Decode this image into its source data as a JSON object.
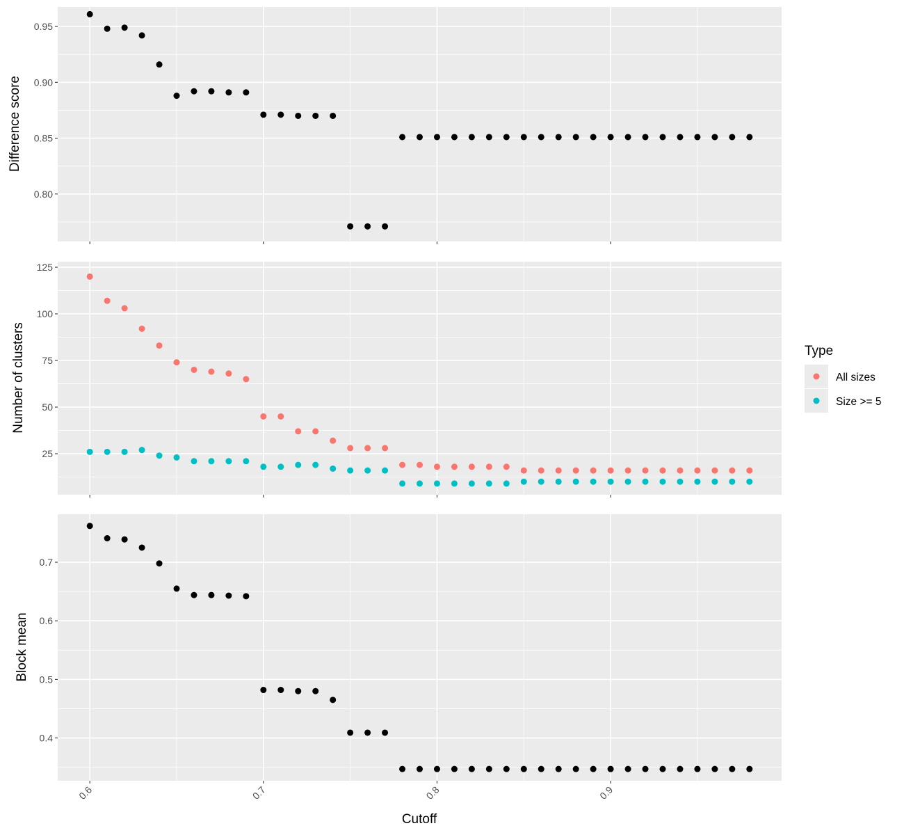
{
  "chart_data": {
    "type": "scatter",
    "x_title": "Cutoff",
    "x_lim": [
      0.5815,
      0.9985
    ],
    "x_ticks": [
      0.6,
      0.7,
      0.8,
      0.9
    ],
    "x_tick_labels": [
      "0.6",
      "0.7",
      "0.8",
      "0.9"
    ],
    "x": [
      0.6,
      0.61,
      0.62,
      0.63,
      0.64,
      0.65,
      0.66,
      0.67,
      0.68,
      0.69,
      0.7,
      0.71,
      0.72,
      0.73,
      0.74,
      0.75,
      0.76,
      0.77,
      0.78,
      0.79,
      0.8,
      0.81,
      0.82,
      0.83,
      0.84,
      0.85,
      0.86,
      0.87,
      0.88,
      0.89,
      0.9,
      0.91,
      0.92,
      0.93,
      0.94,
      0.95,
      0.96,
      0.97,
      0.98
    ],
    "grid": true,
    "background": "#ebebeb",
    "legend_position": "right",
    "legend": {
      "title": "Type",
      "entries": [
        {
          "label": "All sizes",
          "color": "#F8766D"
        },
        {
          "label": "Size >= 5",
          "color": "#00BFC4"
        }
      ]
    },
    "panels": [
      {
        "ylabel": "Difference score",
        "ylim": [
          0.7575,
          0.9675
        ],
        "y_ticks": [
          0.8,
          0.85,
          0.9,
          0.95
        ],
        "y_tick_labels": [
          "0.80",
          "0.85",
          "0.90",
          "0.95"
        ],
        "series": [
          {
            "color": "#000000",
            "values": [
              0.961,
              0.948,
              0.949,
              0.942,
              0.916,
              0.888,
              0.892,
              0.892,
              0.891,
              0.891,
              0.871,
              0.871,
              0.87,
              0.87,
              0.87,
              0.771,
              0.771,
              0.771,
              0.851,
              0.851,
              0.851,
              0.851,
              0.851,
              0.851,
              0.851,
              0.851,
              0.851,
              0.851,
              0.851,
              0.851,
              0.851,
              0.851,
              0.851,
              0.851,
              0.851,
              0.851,
              0.851,
              0.851,
              0.851
            ]
          }
        ]
      },
      {
        "ylabel": "Number of clusters",
        "ylim": [
          3,
          128
        ],
        "y_ticks": [
          25,
          50,
          75,
          100,
          125
        ],
        "y_tick_labels": [
          "25",
          "50",
          "75",
          "100",
          "125"
        ],
        "series": [
          {
            "name": "All sizes",
            "color": "#F8766D",
            "values": [
              120,
              107,
              103,
              92,
              83,
              74,
              70,
              69,
              68,
              65,
              45,
              45,
              37,
              37,
              32,
              28,
              28,
              28,
              19,
              19,
              18,
              18,
              18,
              18,
              18,
              16,
              16,
              16,
              16,
              16,
              16,
              16,
              16,
              16,
              16,
              16,
              16,
              16,
              16
            ]
          },
          {
            "name": "Size >= 5",
            "color": "#00BFC4",
            "values": [
              26,
              26,
              26,
              27,
              24,
              23,
              21,
              21,
              21,
              21,
              18,
              18,
              19,
              19,
              17,
              16,
              16,
              16,
              9,
              9,
              9,
              9,
              9,
              9,
              9,
              10,
              10,
              10,
              10,
              10,
              10,
              10,
              10,
              10,
              10,
              10,
              10,
              10,
              10
            ]
          }
        ]
      },
      {
        "ylabel": "Block mean",
        "ylim": [
          0.327,
          0.782
        ],
        "y_ticks": [
          0.4,
          0.5,
          0.6,
          0.7
        ],
        "y_tick_labels": [
          "0.4",
          "0.5",
          "0.6",
          "0.7"
        ],
        "series": [
          {
            "color": "#000000",
            "values": [
              0.762,
              0.741,
              0.739,
              0.725,
              0.698,
              0.655,
              0.644,
              0.644,
              0.643,
              0.642,
              0.482,
              0.482,
              0.48,
              0.48,
              0.465,
              0.409,
              0.409,
              0.409,
              0.347,
              0.347,
              0.347,
              0.347,
              0.347,
              0.347,
              0.347,
              0.347,
              0.347,
              0.347,
              0.347,
              0.347,
              0.347,
              0.347,
              0.347,
              0.347,
              0.347,
              0.347,
              0.347,
              0.347,
              0.347
            ]
          }
        ]
      }
    ]
  }
}
